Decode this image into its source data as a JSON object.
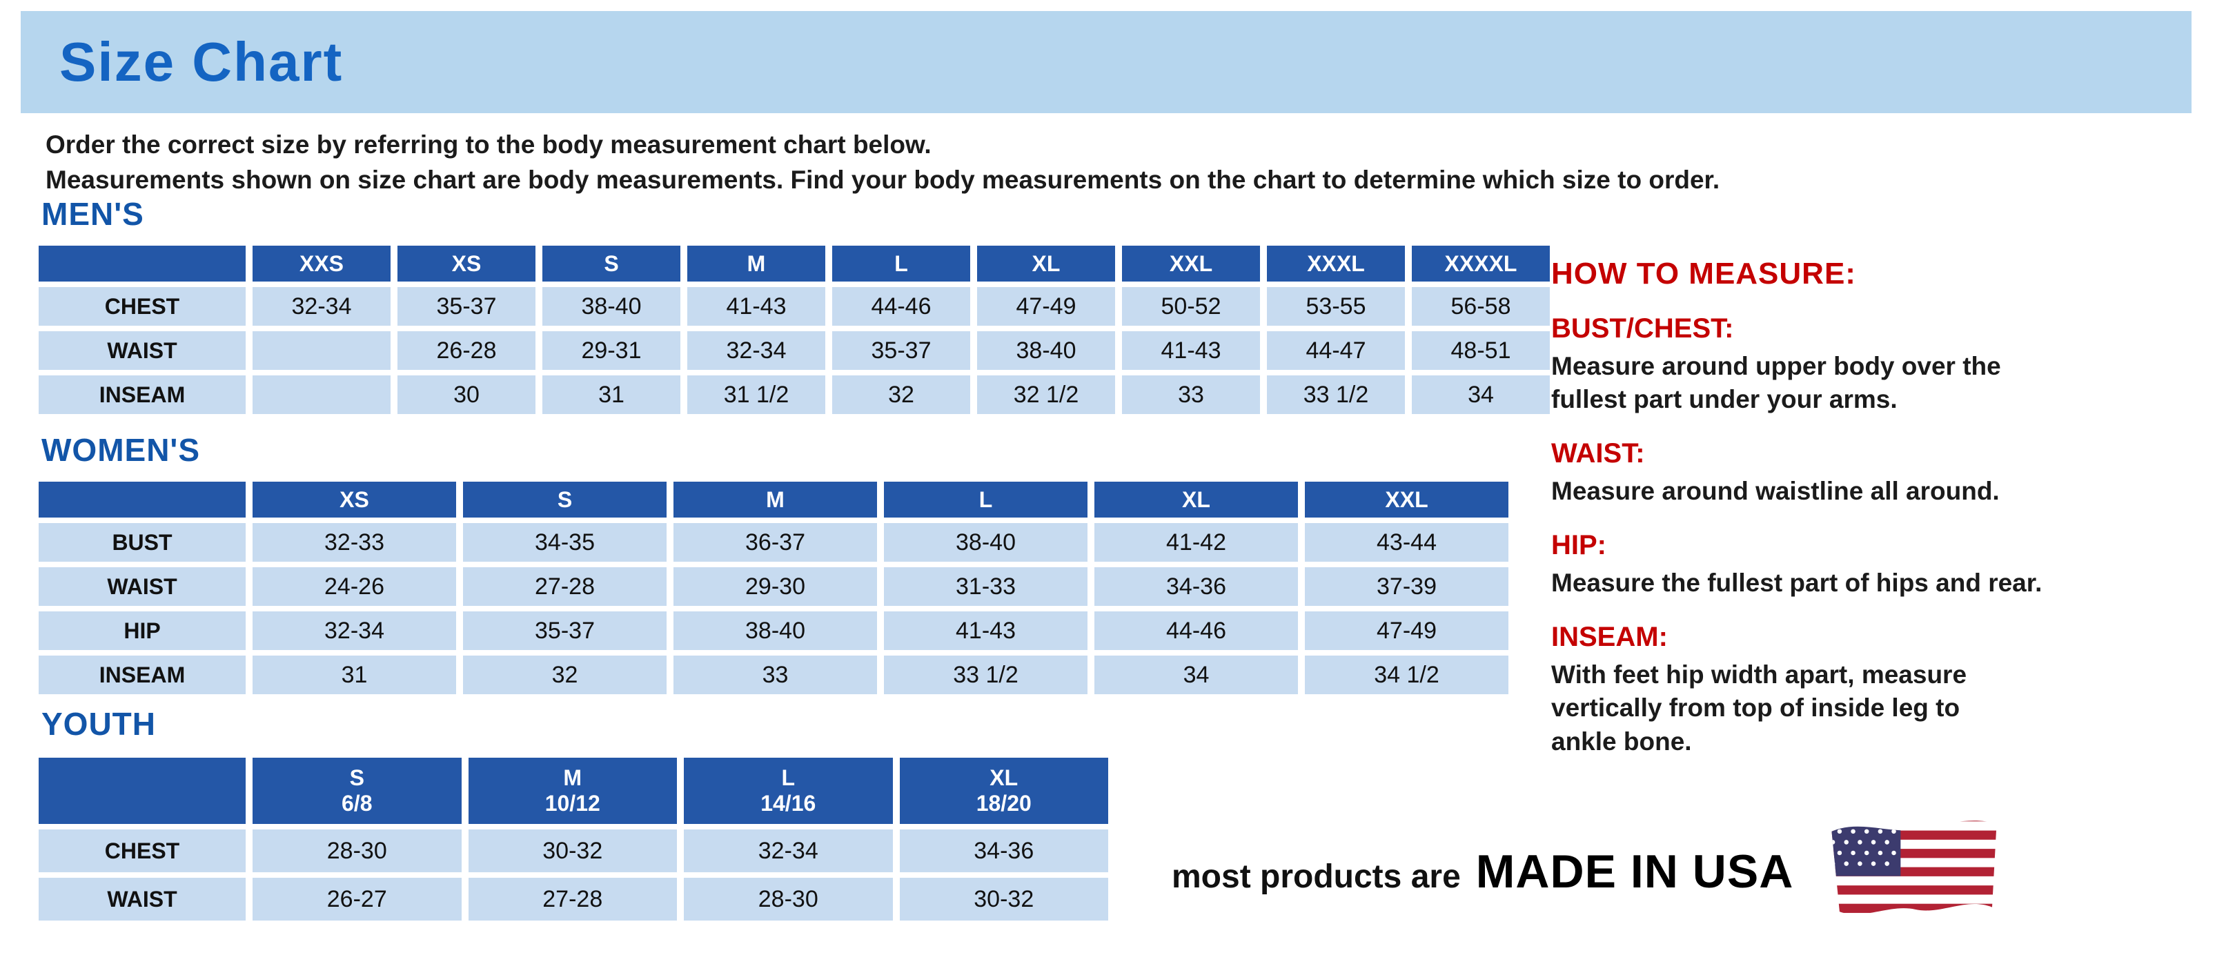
{
  "page": {
    "title": "Size Chart",
    "intro_line1": "Order the correct size by referring to the body measurement chart below.",
    "intro_line2": "Measurements shown on size chart are body measurements.  Find your body measurements on the chart to determine which size to order."
  },
  "tables": [
    {
      "section_title": "MEN'S",
      "columns": [
        "XXS",
        "XS",
        "S",
        "M",
        "L",
        "XL",
        "XXL",
        "XXXL",
        "XXXXL"
      ],
      "rows": [
        {
          "label": "CHEST",
          "values": [
            "32-34",
            "35-37",
            "38-40",
            "41-43",
            "44-46",
            "47-49",
            "50-52",
            "53-55",
            "56-58"
          ]
        },
        {
          "label": "WAIST",
          "values": [
            "",
            "26-28",
            "29-31",
            "32-34",
            "35-37",
            "38-40",
            "41-43",
            "44-47",
            "48-51"
          ]
        },
        {
          "label": "INSEAM",
          "values": [
            "",
            "30",
            "31",
            "31 1/2",
            "32",
            "32 1/2",
            "33",
            "33 1/2",
            "34"
          ]
        }
      ]
    },
    {
      "section_title": "WOMEN'S",
      "columns": [
        "XS",
        "S",
        "M",
        "L",
        "XL",
        "XXL"
      ],
      "rows": [
        {
          "label": "BUST",
          "values": [
            "32-33",
            "34-35",
            "36-37",
            "38-40",
            "41-42",
            "43-44"
          ]
        },
        {
          "label": "WAIST",
          "values": [
            "24-26",
            "27-28",
            "29-30",
            "31-33",
            "34-36",
            "37-39"
          ]
        },
        {
          "label": "HIP",
          "values": [
            "32-34",
            "35-37",
            "38-40",
            "41-43",
            "44-46",
            "47-49"
          ]
        },
        {
          "label": "INSEAM",
          "values": [
            "31",
            "32",
            "33",
            "33 1/2",
            "34",
            "34 1/2"
          ]
        }
      ]
    },
    {
      "section_title": "YOUTH",
      "columns": [
        "S\n6/8",
        "M\n10/12",
        "L\n14/16",
        "XL\n18/20"
      ],
      "rows": [
        {
          "label": "CHEST",
          "values": [
            "28-30",
            "30-32",
            "32-34",
            "34-36"
          ]
        },
        {
          "label": "WAIST",
          "values": [
            "26-27",
            "27-28",
            "28-30",
            "30-32"
          ]
        }
      ]
    }
  ],
  "how_to_measure": {
    "title": "HOW TO MEASURE:",
    "items": [
      {
        "label": "BUST/CHEST:",
        "text": "Measure around upper body over the\nfullest part under your arms."
      },
      {
        "label": "WAIST:",
        "text": "Measure around waistline all around."
      },
      {
        "label": "HIP:",
        "text": "Measure the fullest part of hips and rear."
      },
      {
        "label": "INSEAM:",
        "text": "With feet hip width apart, measure\nvertically from top of inside leg to\nankle bone."
      }
    ]
  },
  "footer": {
    "prefix": "most products are",
    "emphasis": "MADE IN USA",
    "flag_icon": "us-flag-icon"
  },
  "colors": {
    "banner_bg": "#b6d6ee",
    "title_blue": "#1464c2",
    "section_blue": "#1255a8",
    "table_header_bg": "#2457a7",
    "table_cell_bg": "#c7dbf0",
    "accent_red": "#c40000",
    "flag_red": "#b22234",
    "flag_navy": "#3c3b6e"
  }
}
